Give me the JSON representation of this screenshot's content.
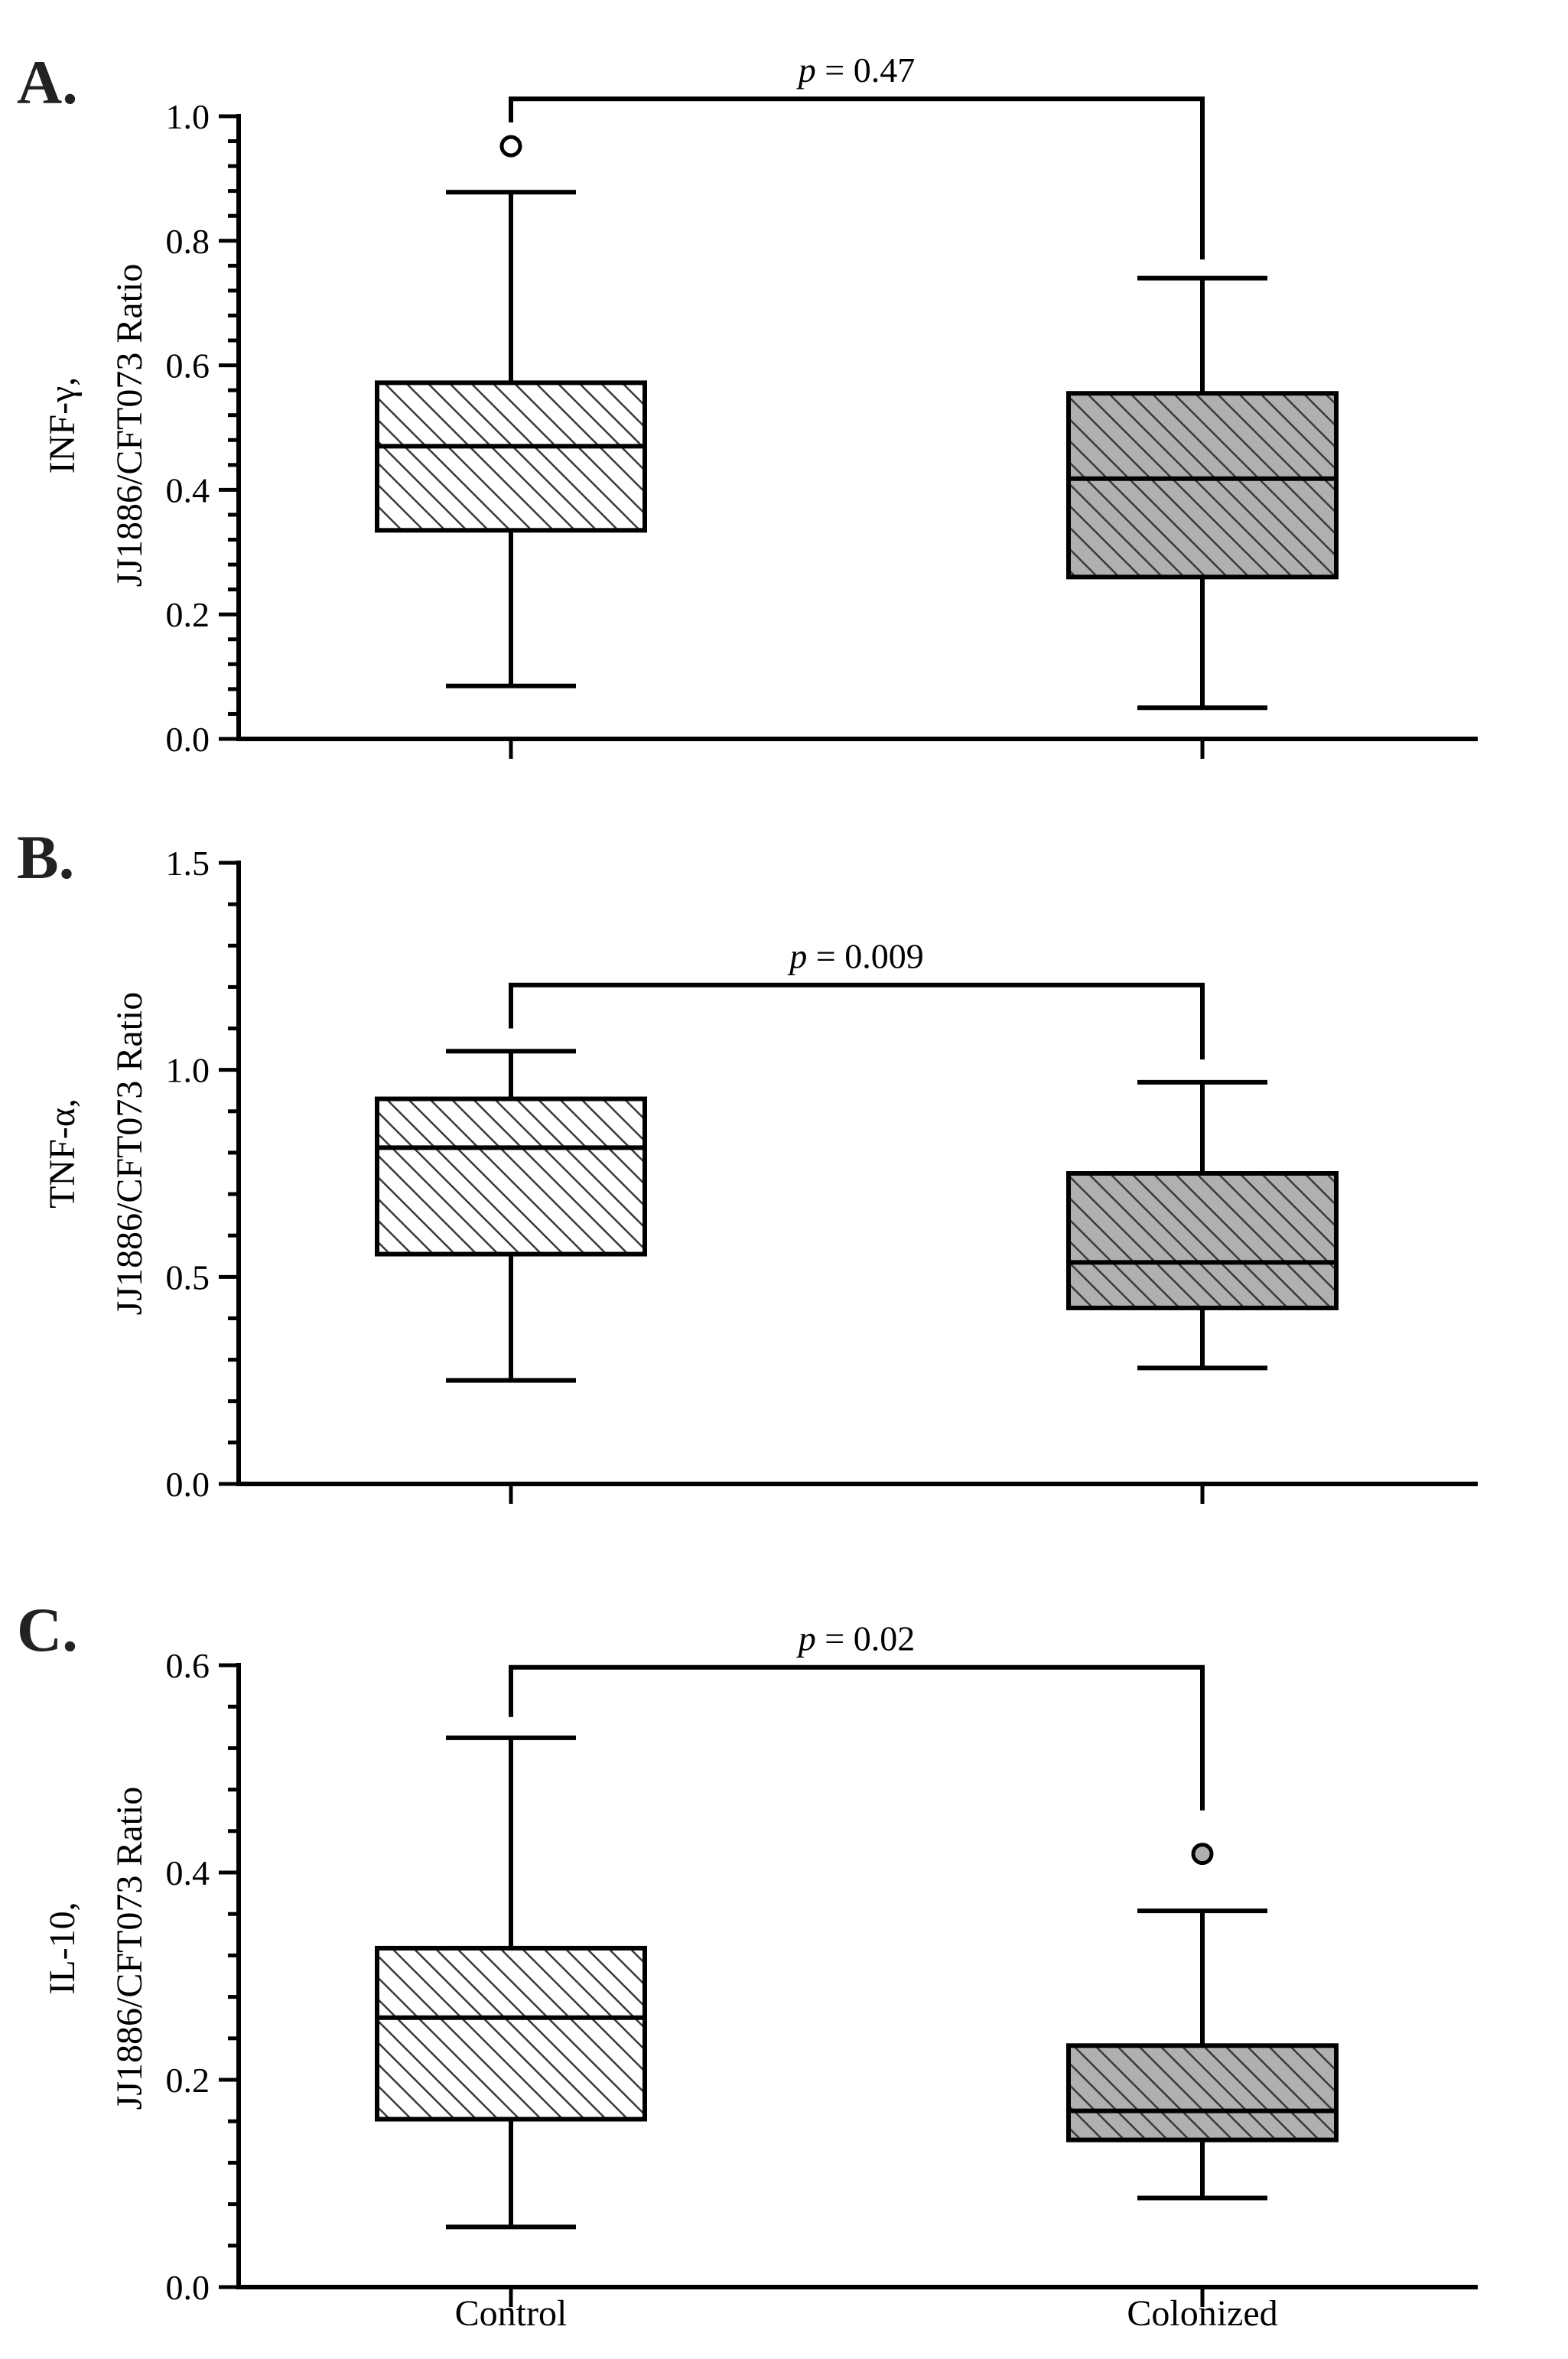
{
  "chart_data": [
    {
      "type": "box",
      "panel_label": "A.",
      "ylabel_line1": "INF-γ,",
      "ylabel_line2": "JJ1886/CFT073 Ratio",
      "ylim": [
        0,
        1.0
      ],
      "yticks": [
        0.0,
        0.2,
        0.4,
        0.6,
        0.8,
        1.0
      ],
      "ytick_labels": [
        "0.0",
        "0.2",
        "0.4",
        "0.6",
        "0.8",
        "1.0"
      ],
      "minor_per_major": 4,
      "categories": [
        "Control",
        "Colonized"
      ],
      "boxes": [
        {
          "name": "Control",
          "min": 0.085,
          "q1": 0.335,
          "median": 0.47,
          "q3": 0.572,
          "max": 0.878,
          "outliers": [
            0.952
          ]
        },
        {
          "name": "Colonized",
          "min": 0.05,
          "q1": 0.26,
          "median": 0.418,
          "q3": 0.555,
          "max": 0.74,
          "outliers": []
        }
      ],
      "significance": {
        "p_symbol": "p",
        "p_text": "= 0.47",
        "bracket_y": 1.028,
        "left_end": 0.99,
        "right_end": 0.77
      }
    },
    {
      "type": "box",
      "panel_label": "B.",
      "ylabel_line1": "TNF-α,",
      "ylabel_line2": "JJ1886/CFT073 Ratio",
      "ylim": [
        0,
        1.5
      ],
      "yticks": [
        0.0,
        0.5,
        1.0,
        1.5
      ],
      "ytick_labels": [
        "0.0",
        "0.5",
        "1.0",
        "1.5"
      ],
      "minor_per_major": 4,
      "categories": [
        "Control",
        "Colonized"
      ],
      "boxes": [
        {
          "name": "Control",
          "min": 0.25,
          "q1": 0.555,
          "median": 0.812,
          "q3": 0.93,
          "max": 1.045,
          "outliers": []
        },
        {
          "name": "Colonized",
          "min": 0.28,
          "q1": 0.425,
          "median": 0.535,
          "q3": 0.75,
          "max": 0.97,
          "outliers": []
        }
      ],
      "significance": {
        "p_symbol": "p",
        "p_text": "= 0.009",
        "bracket_y": 1.205,
        "left_end": 1.1,
        "right_end": 1.025
      }
    },
    {
      "type": "box",
      "panel_label": "C.",
      "ylabel_line1": "IL-10,",
      "ylabel_line2": "JJ1886/CFT073 Ratio",
      "ylim": [
        0,
        0.6
      ],
      "yticks": [
        0.0,
        0.2,
        0.4,
        0.6
      ],
      "ytick_labels": [
        "0.0",
        "0.2",
        "0.4",
        "0.6"
      ],
      "minor_per_major": 4,
      "categories": [
        "Control",
        "Colonized"
      ],
      "boxes": [
        {
          "name": "Control",
          "min": 0.058,
          "q1": 0.162,
          "median": 0.26,
          "q3": 0.327,
          "max": 0.53,
          "outliers": []
        },
        {
          "name": "Colonized",
          "min": 0.086,
          "q1": 0.142,
          "median": 0.17,
          "q3": 0.233,
          "max": 0.363,
          "outliers": [
            0.418
          ]
        }
      ],
      "significance": {
        "p_symbol": "p",
        "p_text": "= 0.02",
        "bracket_y": 0.598,
        "left_end": 0.55,
        "right_end": 0.46
      }
    }
  ],
  "x_axis_labels": [
    "Control",
    "Colonized"
  ],
  "colors": {
    "control_fill": "#ffffff",
    "colonized_fill": "#b0b0b0",
    "hatch": "#3a3a3a",
    "line": "#000000",
    "letter": "#222222"
  }
}
